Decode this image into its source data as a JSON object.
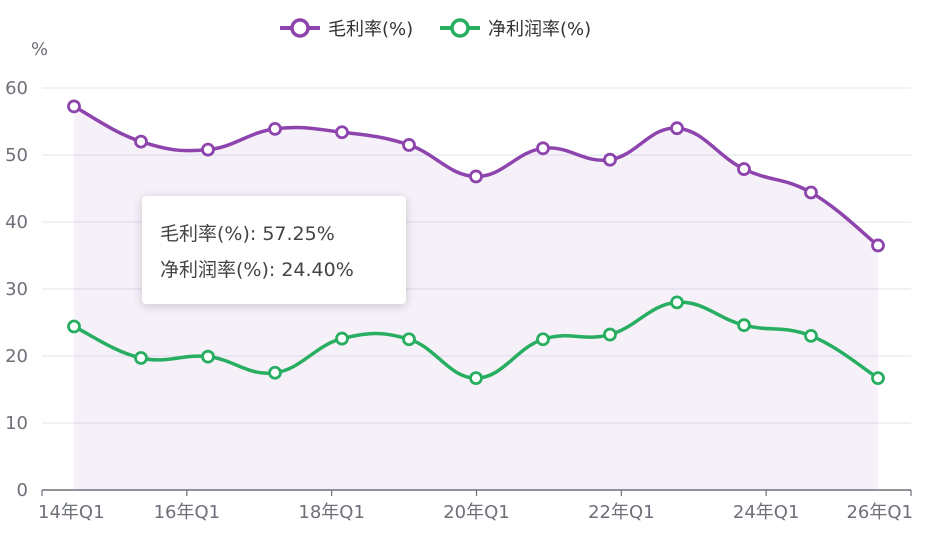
{
  "chart_data": {
    "type": "line",
    "title": "",
    "ylabel": "%",
    "xlabel": "",
    "ylim": [
      0,
      60
    ],
    "yticks": [
      0,
      10,
      20,
      30,
      40,
      50,
      60
    ],
    "x_tick_labels": [
      "14年Q1",
      "16年Q1",
      "18年Q1",
      "20年Q1",
      "22年Q1",
      "24年Q1",
      "26年Q1"
    ],
    "legend_position": "top-center",
    "grid": true,
    "smooth": true,
    "series": [
      {
        "name": "毛利率(%)",
        "color": "#8e44ad",
        "area": true,
        "values": [
          57.25,
          52.0,
          50.8,
          53.9,
          53.4,
          51.5,
          46.8,
          51.0,
          49.3,
          54.0,
          47.9,
          44.4,
          36.5
        ]
      },
      {
        "name": "净利润率(%)",
        "color": "#27ae60",
        "area": false,
        "values": [
          24.4,
          19.7,
          19.9,
          17.5,
          22.6,
          22.5,
          16.7,
          22.5,
          23.2,
          28.0,
          24.6,
          23.0,
          16.7
        ]
      }
    ]
  },
  "tooltip": {
    "line1": "毛利率(%): 57.25%",
    "line2": "净利润率(%): 24.40%"
  }
}
